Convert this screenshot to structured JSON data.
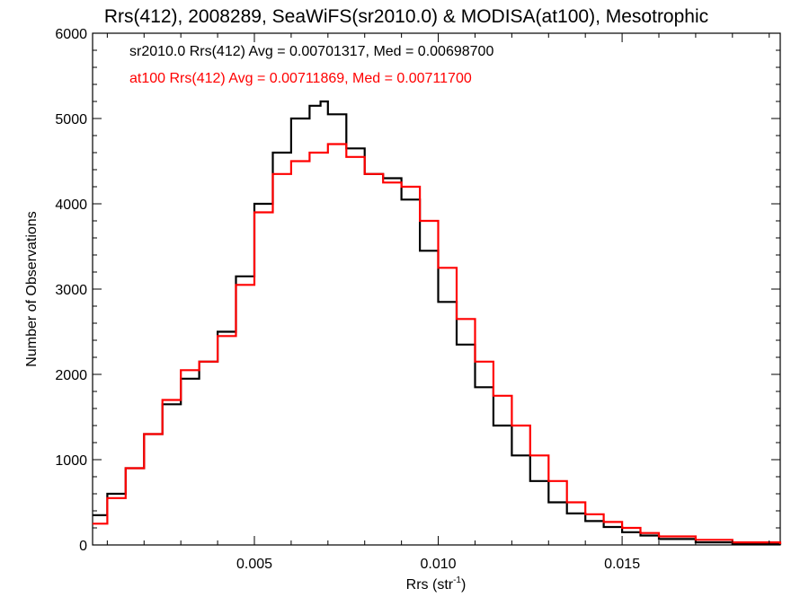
{
  "chart_data": {
    "type": "line",
    "title": "Rrs(412), 2008289, SeaWiFS(sr2010.0) & MODISA(at100), Mesotrophic",
    "xlabel_main": "Rrs (str",
    "xlabel_sup": "-1",
    "xlabel_close": ")",
    "ylabel": "Number of Observations",
    "xlim": [
      0.0006,
      0.0193
    ],
    "ylim": [
      0,
      6000
    ],
    "xticks": [
      0.005,
      0.01,
      0.015
    ],
    "xtick_labels": [
      "0.005",
      "0.010",
      "0.015"
    ],
    "yticks": [
      0,
      1000,
      2000,
      3000,
      4000,
      5000,
      6000
    ],
    "ytick_labels": [
      "0",
      "1000",
      "2000",
      "3000",
      "4000",
      "5000",
      "6000"
    ],
    "grid": false,
    "step": true,
    "legend_placement": "top-left",
    "series": [
      {
        "name": "sr2010.0 Rrs(412) Avg = 0.00701317, Med = 0.00698700",
        "color": "#000000",
        "x": [
          0.0006,
          0.001,
          0.0015,
          0.002,
          0.0025,
          0.003,
          0.0035,
          0.004,
          0.0045,
          0.005,
          0.0055,
          0.006,
          0.0065,
          0.0068,
          0.007,
          0.0075,
          0.008,
          0.0085,
          0.009,
          0.0095,
          0.01,
          0.0105,
          0.011,
          0.0115,
          0.012,
          0.0125,
          0.013,
          0.0135,
          0.014,
          0.0145,
          0.015,
          0.0155,
          0.016,
          0.017,
          0.018,
          0.0193
        ],
        "y": [
          350,
          600,
          900,
          1300,
          1650,
          1950,
          2150,
          2500,
          3150,
          4000,
          4600,
          5000,
          5150,
          5200,
          5050,
          4650,
          4350,
          4300,
          4050,
          3450,
          2850,
          2350,
          1850,
          1400,
          1050,
          750,
          500,
          370,
          280,
          210,
          150,
          110,
          70,
          30,
          10,
          5
        ]
      },
      {
        "name": "at100 Rrs(412) Avg = 0.00711869, Med = 0.00711700",
        "color": "#ff0000",
        "x": [
          0.0006,
          0.001,
          0.0015,
          0.002,
          0.0025,
          0.003,
          0.0035,
          0.004,
          0.0045,
          0.005,
          0.0055,
          0.006,
          0.0065,
          0.007,
          0.0075,
          0.008,
          0.0085,
          0.009,
          0.0095,
          0.01,
          0.0105,
          0.011,
          0.0115,
          0.012,
          0.0125,
          0.013,
          0.0135,
          0.014,
          0.0145,
          0.015,
          0.0155,
          0.016,
          0.017,
          0.018,
          0.0193
        ],
        "y": [
          250,
          550,
          900,
          1300,
          1700,
          2050,
          2150,
          2450,
          3050,
          3900,
          4350,
          4500,
          4600,
          4700,
          4550,
          4350,
          4250,
          4200,
          3800,
          3250,
          2650,
          2150,
          1750,
          1400,
          1050,
          750,
          500,
          360,
          270,
          200,
          140,
          100,
          60,
          30,
          10
        ]
      }
    ]
  }
}
